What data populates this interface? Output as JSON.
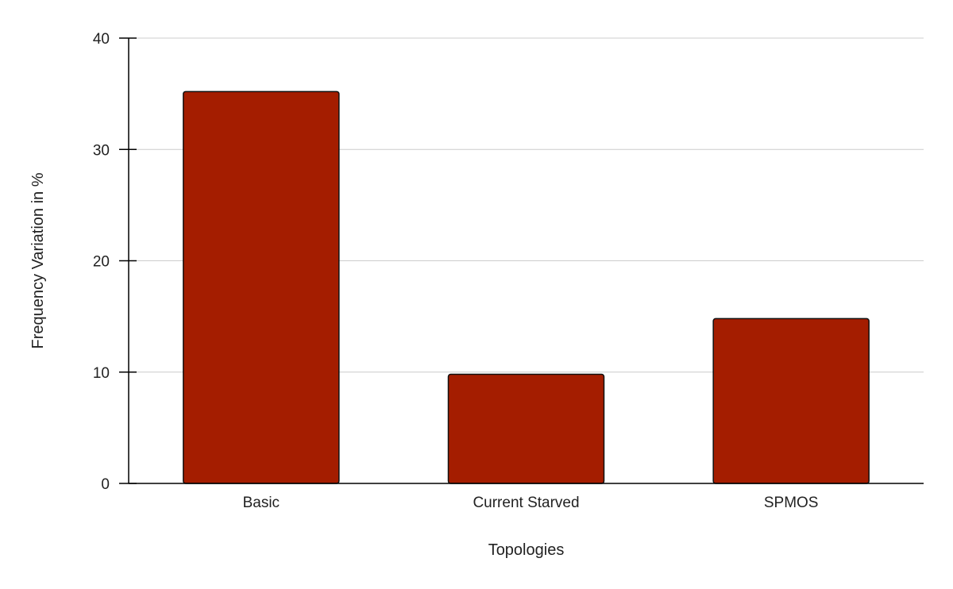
{
  "chart_data": {
    "type": "bar",
    "categories": [
      "Basic",
      "Current Starved",
      "SPMOS"
    ],
    "values": [
      35.2,
      9.8,
      14.8
    ],
    "xlabel": "Topologies",
    "ylabel": "Frequency Variation in %",
    "ylim": [
      0,
      40
    ],
    "yticks": [
      0,
      10,
      20,
      30,
      40
    ],
    "grid": true,
    "legend": "none",
    "colors": {
      "bar_fill": "#a41d00",
      "bar_stroke": "#111111",
      "grid": "#cccccc",
      "axis": "#000000"
    }
  }
}
